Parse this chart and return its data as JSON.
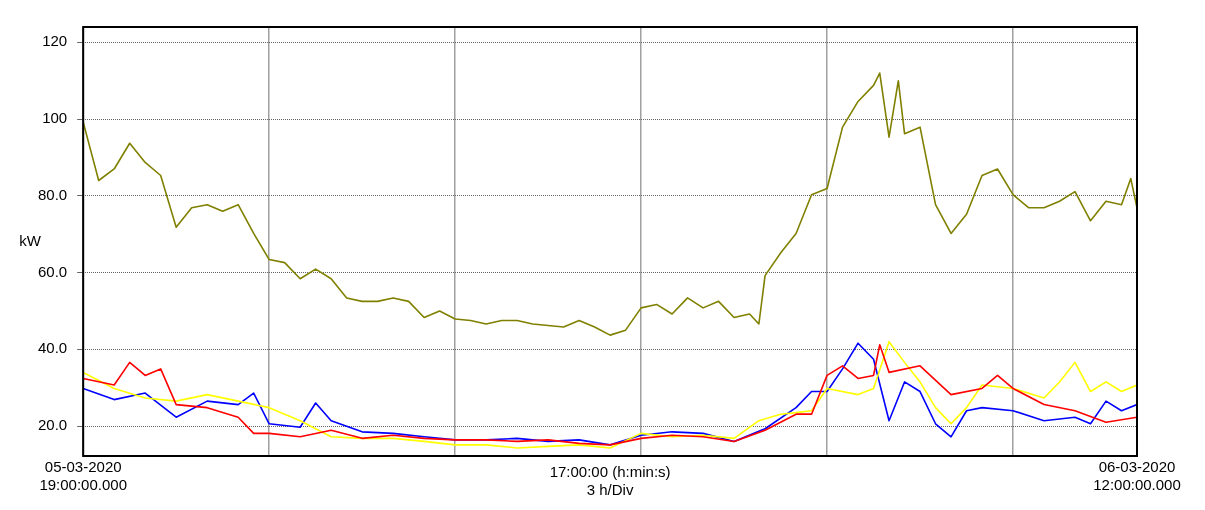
{
  "chart_data": {
    "type": "line",
    "ylabel": "kW",
    "xlabel": "17:00:00 (h:min:s)\n3 h/Div",
    "xlim": [
      "2020-03-05T19:00",
      "2020-03-06T12:00"
    ],
    "ylim": [
      12.2,
      124
    ],
    "xticks": [
      {
        "value": "2020-03-05T19:00",
        "label": "05-03-2020\n19:00:00.000"
      },
      {
        "value": "2020-03-05T22:00",
        "label": null
      },
      {
        "value": "2020-03-06T01:00",
        "label": null
      },
      {
        "value": "2020-03-06T04:00",
        "label": null
      },
      {
        "value": "2020-03-06T07:00",
        "label": null
      },
      {
        "value": "2020-03-06T10:00",
        "label": null
      },
      {
        "value": "2020-03-06T12:00",
        "label": "06-03-2020\n12:00:00.000"
      }
    ],
    "yticks": [
      {
        "value": 20,
        "label": "20.0"
      },
      {
        "value": 40,
        "label": "40.0"
      },
      {
        "value": 60,
        "label": "60.0"
      },
      {
        "value": 80,
        "label": "80.0"
      },
      100,
      120
    ],
    "grid": true,
    "legend": false,
    "marker": "none",
    "line_style": "solid",
    "series": [
      {
        "color": "#808000",
        "x": [
          "2020-03-05T19:00",
          "2020-03-05T19:15",
          "2020-03-05T19:30",
          "2020-03-05T19:45",
          "2020-03-05T20:00",
          "2020-03-05T20:15",
          "2020-03-05T20:30",
          "2020-03-05T20:45",
          "2020-03-05T21:00",
          "2020-03-05T21:15",
          "2020-03-05T21:30",
          "2020-03-05T21:45",
          "2020-03-05T22:00",
          "2020-03-05T22:15",
          "2020-03-05T22:30",
          "2020-03-05T22:45",
          "2020-03-05T23:00",
          "2020-03-05T23:15",
          "2020-03-05T23:30",
          "2020-03-05T23:45",
          "2020-03-06T00:00",
          "2020-03-06T00:15",
          "2020-03-06T00:30",
          "2020-03-06T00:45",
          "2020-03-06T01:00",
          "2020-03-06T01:15",
          "2020-03-06T01:30",
          "2020-03-06T01:45",
          "2020-03-06T02:00",
          "2020-03-06T02:15",
          "2020-03-06T02:30",
          "2020-03-06T02:45",
          "2020-03-06T03:00",
          "2020-03-06T03:15",
          "2020-03-06T03:30",
          "2020-03-06T03:45",
          "2020-03-06T04:00",
          "2020-03-06T04:15",
          "2020-03-06T04:30",
          "2020-03-06T04:45",
          "2020-03-06T05:00",
          "2020-03-06T05:15",
          "2020-03-06T05:30",
          "2020-03-06T05:45",
          "2020-03-06T05:54",
          "2020-03-06T06:00",
          "2020-03-06T06:15",
          "2020-03-06T06:30",
          "2020-03-06T06:45",
          "2020-03-06T07:00",
          "2020-03-06T07:15",
          "2020-03-06T07:30",
          "2020-03-06T07:45",
          "2020-03-06T07:51",
          "2020-03-06T08:00",
          "2020-03-06T08:09",
          "2020-03-06T08:15",
          "2020-03-06T08:30",
          "2020-03-06T08:45",
          "2020-03-06T09:00",
          "2020-03-06T09:15",
          "2020-03-06T09:30",
          "2020-03-06T09:45",
          "2020-03-06T10:00",
          "2020-03-06T10:15",
          "2020-03-06T10:30",
          "2020-03-06T10:45",
          "2020-03-06T11:00",
          "2020-03-06T11:15",
          "2020-03-06T11:30",
          "2020-03-06T11:45",
          "2020-03-06T11:54",
          "2020-03-06T12:00"
        ],
        "values": [
          99.2,
          84,
          87,
          93.7,
          88.7,
          85.3,
          71.8,
          76.9,
          77.7,
          76,
          77.7,
          70.2,
          63.4,
          62.6,
          58.4,
          60.9,
          58.4,
          53.4,
          52.5,
          52.5,
          53.4,
          52.5,
          48.3,
          50,
          47.9,
          47.5,
          46.6,
          47.5,
          47.5,
          46.6,
          46.2,
          45.8,
          47.5,
          45.8,
          43.7,
          45,
          50.8,
          51.7,
          49.2,
          53.4,
          50.8,
          52.5,
          48.3,
          49.2,
          46.6,
          59.2,
          65.1,
          70.2,
          80.3,
          81.9,
          97.9,
          104.6,
          108.8,
          112,
          95.3,
          110,
          96.2,
          97.9,
          77.7,
          70.2,
          75.2,
          85.3,
          87,
          80.3,
          76.9,
          76.9,
          78.6,
          81.1,
          73.5,
          78.6,
          77.7,
          84.5,
          76.9
        ]
      },
      {
        "color": "#ff0000",
        "x": [
          "2020-03-05T19:00",
          "2020-03-05T19:30",
          "2020-03-05T19:45",
          "2020-03-05T20:00",
          "2020-03-05T20:15",
          "2020-03-05T20:30",
          "2020-03-05T21:00",
          "2020-03-05T21:30",
          "2020-03-05T21:45",
          "2020-03-05T22:00",
          "2020-03-05T22:30",
          "2020-03-05T23:00",
          "2020-03-05T23:30",
          "2020-03-06T00:00",
          "2020-03-06T00:30",
          "2020-03-06T01:00",
          "2020-03-06T01:30",
          "2020-03-06T02:00",
          "2020-03-06T02:30",
          "2020-03-06T03:00",
          "2020-03-06T03:30",
          "2020-03-06T04:00",
          "2020-03-06T04:30",
          "2020-03-06T05:00",
          "2020-03-06T05:30",
          "2020-03-06T06:00",
          "2020-03-06T06:30",
          "2020-03-06T06:45",
          "2020-03-06T07:00",
          "2020-03-06T07:15",
          "2020-03-06T07:30",
          "2020-03-06T07:45",
          "2020-03-06T07:51",
          "2020-03-06T08:00",
          "2020-03-06T08:30",
          "2020-03-06T09:00",
          "2020-03-06T09:30",
          "2020-03-06T09:45",
          "2020-03-06T10:00",
          "2020-03-06T10:30",
          "2020-03-06T11:00",
          "2020-03-06T11:30",
          "2020-03-06T12:00"
        ],
        "values": [
          32.4,
          30.7,
          36.6,
          33.2,
          34.9,
          25.6,
          24.8,
          22.3,
          18.1,
          18.1,
          17.2,
          18.9,
          16.8,
          17.6,
          16.8,
          16.4,
          16.4,
          16,
          16.4,
          15.5,
          15.1,
          16.8,
          17.6,
          17.2,
          16,
          18.9,
          23.1,
          23.1,
          33.2,
          35.7,
          32.4,
          33.2,
          41.2,
          34,
          35.7,
          28.2,
          29.8,
          33.2,
          29.8,
          25.6,
          24,
          21,
          22.3
        ]
      },
      {
        "color": "#ffff00",
        "x": [
          "2020-03-05T19:00",
          "2020-03-05T19:30",
          "2020-03-05T20:00",
          "2020-03-05T20:30",
          "2020-03-05T21:00",
          "2020-03-05T21:30",
          "2020-03-05T22:00",
          "2020-03-05T22:30",
          "2020-03-05T23:00",
          "2020-03-05T23:30",
          "2020-03-06T00:00",
          "2020-03-06T00:30",
          "2020-03-06T01:00",
          "2020-03-06T01:30",
          "2020-03-06T02:00",
          "2020-03-06T02:30",
          "2020-03-06T03:00",
          "2020-03-06T03:30",
          "2020-03-06T04:00",
          "2020-03-06T04:30",
          "2020-03-06T05:00",
          "2020-03-06T05:30",
          "2020-03-06T05:54",
          "2020-03-06T06:15",
          "2020-03-06T06:30",
          "2020-03-06T06:45",
          "2020-03-06T07:00",
          "2020-03-06T07:30",
          "2020-03-06T07:45",
          "2020-03-06T08:00",
          "2020-03-06T08:15",
          "2020-03-06T08:30",
          "2020-03-06T08:45",
          "2020-03-06T09:00",
          "2020-03-06T09:15",
          "2020-03-06T09:30",
          "2020-03-06T10:00",
          "2020-03-06T10:30",
          "2020-03-06T10:45",
          "2020-03-06T11:00",
          "2020-03-06T11:15",
          "2020-03-06T11:30",
          "2020-03-06T11:45",
          "2020-03-06T12:00"
        ],
        "values": [
          34,
          29.8,
          27.3,
          26.5,
          28.2,
          26.5,
          24.8,
          21.4,
          17.2,
          16.8,
          16.8,
          16,
          15.1,
          15.1,
          14.3,
          14.7,
          15.1,
          14.3,
          18.1,
          17.2,
          17.6,
          16.8,
          21.4,
          23.1,
          23.5,
          24,
          29.8,
          28.2,
          29.8,
          42,
          36.6,
          31.5,
          24.8,
          20.6,
          24.8,
          30.7,
          29.8,
          27.3,
          31.5,
          36.6,
          29,
          31.5,
          29,
          30.7
        ]
      },
      {
        "color": "#0000ff",
        "x": [
          "2020-03-05T19:00",
          "2020-03-05T19:30",
          "2020-03-05T20:00",
          "2020-03-05T20:30",
          "2020-03-05T21:00",
          "2020-03-05T21:30",
          "2020-03-05T21:45",
          "2020-03-05T22:00",
          "2020-03-05T22:30",
          "2020-03-05T22:45",
          "2020-03-05T23:00",
          "2020-03-05T23:30",
          "2020-03-06T00:00",
          "2020-03-06T00:30",
          "2020-03-06T01:00",
          "2020-03-06T01:30",
          "2020-03-06T02:00",
          "2020-03-06T02:30",
          "2020-03-06T03:00",
          "2020-03-06T03:30",
          "2020-03-06T04:00",
          "2020-03-06T04:30",
          "2020-03-06T05:00",
          "2020-03-06T05:30",
          "2020-03-06T06:00",
          "2020-03-06T06:30",
          "2020-03-06T06:45",
          "2020-03-06T07:00",
          "2020-03-06T07:15",
          "2020-03-06T07:30",
          "2020-03-06T07:45",
          "2020-03-06T08:00",
          "2020-03-06T08:15",
          "2020-03-06T08:30",
          "2020-03-06T08:45",
          "2020-03-06T09:00",
          "2020-03-06T09:15",
          "2020-03-06T09:30",
          "2020-03-06T10:00",
          "2020-03-06T10:30",
          "2020-03-06T11:00",
          "2020-03-06T11:15",
          "2020-03-06T11:30",
          "2020-03-06T11:45",
          "2020-03-06T12:00"
        ],
        "values": [
          29.8,
          26.9,
          28.6,
          22.3,
          26.5,
          25.6,
          28.6,
          20.6,
          19.7,
          26,
          21.4,
          18.5,
          18.1,
          17.2,
          16.4,
          16.4,
          16.8,
          16,
          16.4,
          15.1,
          17.6,
          18.5,
          18.1,
          16,
          19.3,
          24.8,
          29,
          29,
          34.9,
          41.6,
          37.4,
          21.4,
          31.5,
          29,
          20.6,
          17.2,
          24,
          24.8,
          24,
          21.4,
          22.3,
          20.6,
          26.5,
          24,
          25.6
        ]
      }
    ]
  }
}
